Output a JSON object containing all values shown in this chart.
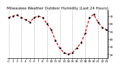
{
  "title": "Milwaukee Weather Outdoor Humidity (Last 24 Hours)",
  "x": [
    0,
    1,
    2,
    3,
    4,
    5,
    6,
    7,
    8,
    9,
    10,
    11,
    12,
    13,
    14,
    15,
    16,
    17,
    18,
    19,
    20,
    21,
    22,
    23
  ],
  "y": [
    68,
    70,
    71,
    68,
    65,
    62,
    68,
    70,
    68,
    60,
    52,
    38,
    28,
    22,
    20,
    22,
    28,
    35,
    48,
    68,
    72,
    62,
    55,
    52
  ],
  "line_color": "#cc0000",
  "marker_color": "#000000",
  "grid_color": "#999999",
  "bg_color": "#ffffff",
  "plot_bg": "#ffffff",
  "ylim": [
    15,
    78
  ],
  "yticks": [
    20,
    30,
    40,
    50,
    60,
    70
  ],
  "ytick_labels": [
    "20",
    "30",
    "40",
    "50",
    "60",
    "70"
  ],
  "title_fontsize": 4.0,
  "tick_fontsize": 3.2,
  "grid_x_positions": [
    0,
    3,
    6,
    9,
    12,
    15,
    18,
    21
  ],
  "x_tick_labels": [
    "0",
    "1",
    "2",
    "3",
    "4",
    "5",
    "6",
    "7",
    "8",
    "9",
    "10",
    "11",
    "12",
    "13",
    "14",
    "15",
    "16",
    "17",
    "18",
    "19",
    "20",
    "21",
    "22",
    "23"
  ]
}
